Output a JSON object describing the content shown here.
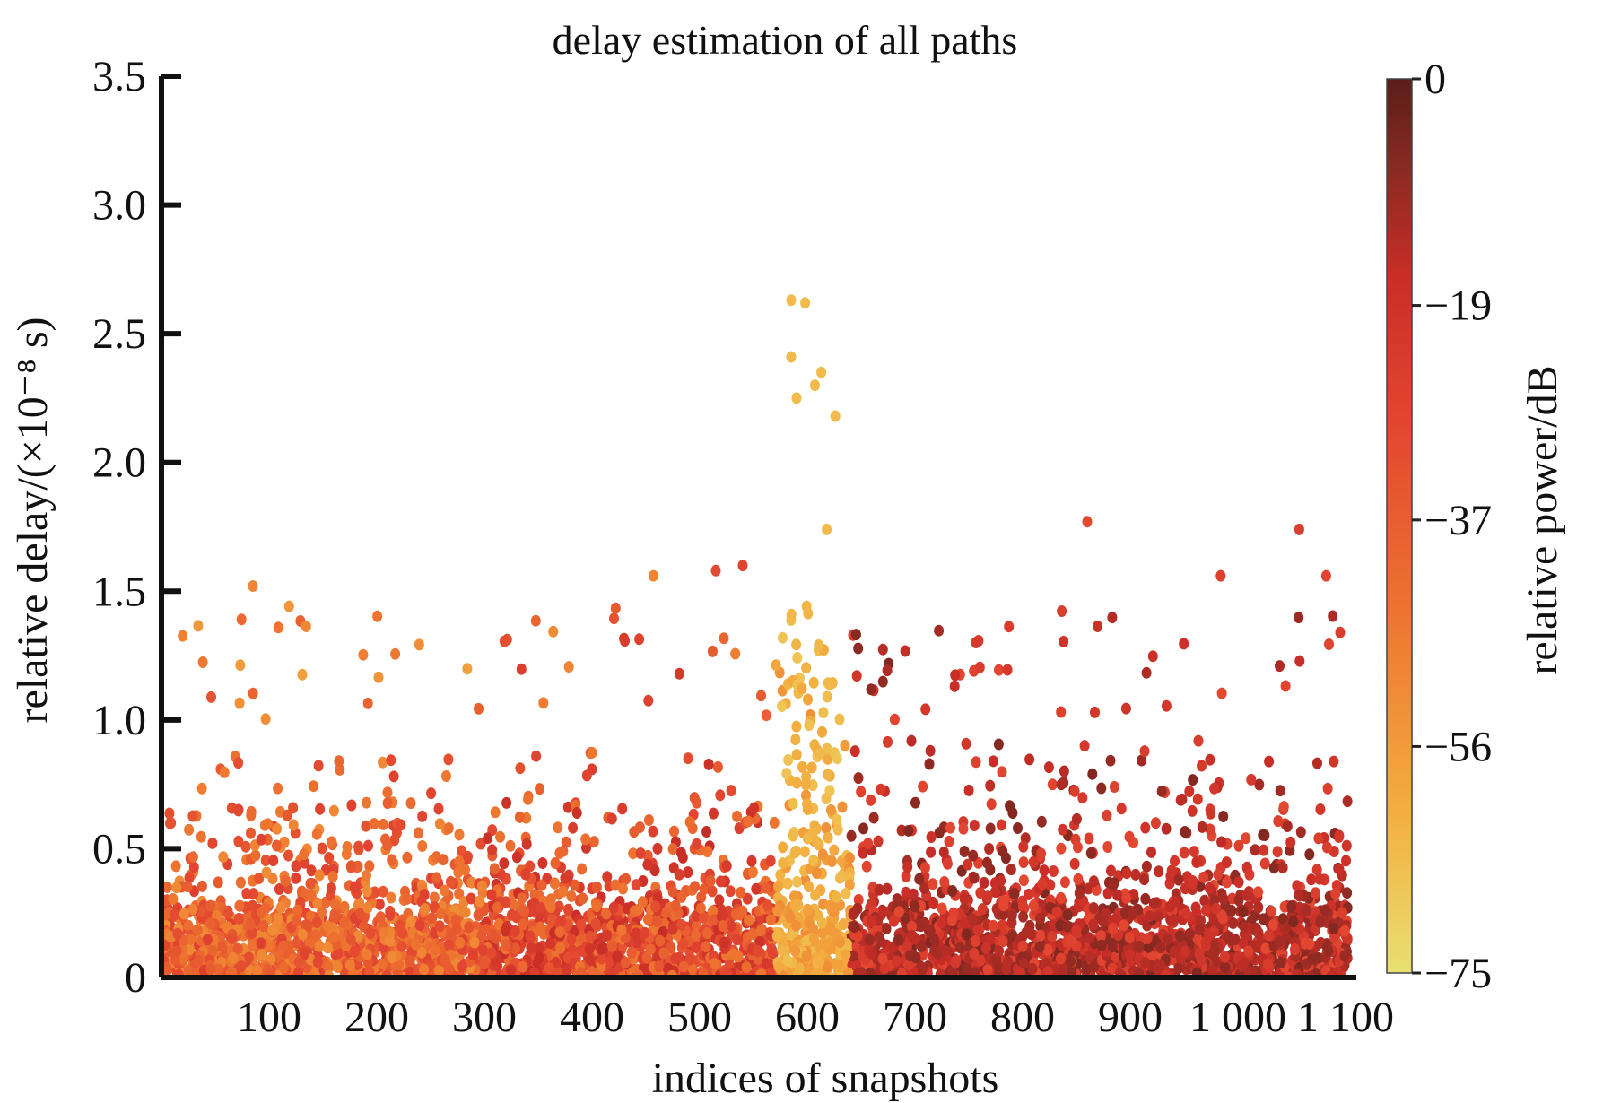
{
  "chart_data": {
    "type": "scatter",
    "title": "delay estimation of all paths",
    "xlabel": "indices of snapshots",
    "ylabel": "relative delay/(×10⁻⁸ s)",
    "xlim": [
      0,
      1110
    ],
    "ylim": [
      0,
      3.5
    ],
    "x_ticks": [
      100,
      200,
      300,
      400,
      500,
      600,
      700,
      800,
      900,
      1000,
      1100
    ],
    "x_tick_labels": [
      "100",
      "200",
      "300",
      "400",
      "500",
      "600",
      "700",
      "800",
      "900",
      "1 000",
      "1 100"
    ],
    "y_ticks": [
      0,
      0.5,
      1.0,
      1.5,
      2.0,
      2.5,
      3.0,
      3.5
    ],
    "y_tick_labels": [
      "0",
      "0.5",
      "1.0",
      "1.5",
      "2.0",
      "2.5",
      "3.0",
      "3.5"
    ],
    "colorbar": {
      "label": "relative power/dB",
      "range": [
        -75,
        0
      ],
      "ticks": [
        0,
        -19,
        -37,
        -56,
        -75
      ],
      "tick_labels": [
        "0",
        "−19",
        "−37",
        "−56",
        "−75"
      ],
      "colors": [
        "#e8e070",
        "#f3ae40",
        "#ee7530",
        "#e24530",
        "#c82e27",
        "#8a2a22",
        "#5a1e18"
      ]
    },
    "grid": false,
    "highlighted_points": [
      {
        "x": 585,
        "y": 2.63,
        "power_db": -65
      },
      {
        "x": 598,
        "y": 2.62,
        "power_db": -65
      },
      {
        "x": 585,
        "y": 2.41,
        "power_db": -65
      },
      {
        "x": 613,
        "y": 2.35,
        "power_db": -65
      },
      {
        "x": 590,
        "y": 2.25,
        "power_db": -65
      },
      {
        "x": 607,
        "y": 2.3,
        "power_db": -65
      },
      {
        "x": 626,
        "y": 2.18,
        "power_db": -65
      },
      {
        "x": 618,
        "y": 1.74,
        "power_db": -65
      },
      {
        "x": 860,
        "y": 1.77,
        "power_db": -30
      },
      {
        "x": 1057,
        "y": 1.74,
        "power_db": -25
      },
      {
        "x": 85,
        "y": 1.52,
        "power_db": -50
      },
      {
        "x": 457,
        "y": 1.56,
        "power_db": -50
      },
      {
        "x": 515,
        "y": 1.58,
        "power_db": -30
      },
      {
        "x": 540,
        "y": 1.6,
        "power_db": -28
      },
      {
        "x": 984,
        "y": 1.56,
        "power_db": -26
      },
      {
        "x": 1082,
        "y": 1.56,
        "power_db": -28
      },
      {
        "x": 1095,
        "y": 1.34,
        "power_db": -25
      }
    ],
    "bulk_description": "dense cloud of several thousand path estimates between delay 0 and ~1.0, densest below 0.3; low-power (yellow) cluster near snapshots 570–640; higher-power (dark red) paths for snapshots above 650"
  }
}
